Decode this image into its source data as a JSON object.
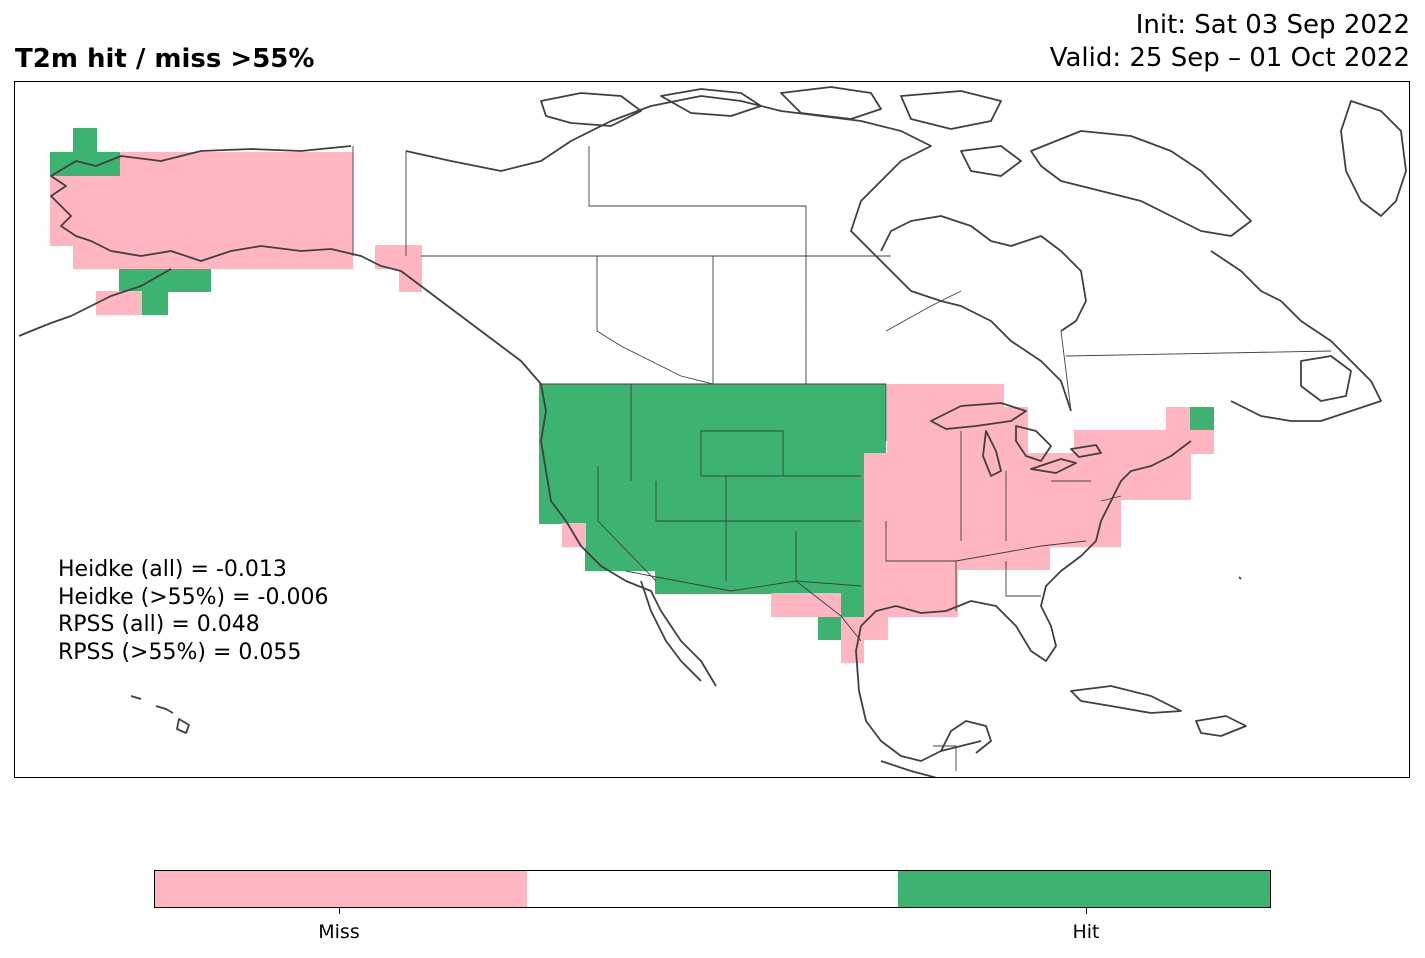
{
  "title": "T2m hit / miss  >55%",
  "init_text": "Init: Sat 03 Sep 2022",
  "valid_text": "Valid: 25 Sep – 01 Oct 2022",
  "stats": {
    "heidke_all": "Heidke (all) = -0.013",
    "heidke_55": "Heidke (>55%) = -0.006",
    "rpss_all": "RPSS (all) = 0.048",
    "rpss_55": "RPSS (>55%) = 0.055"
  },
  "colors": {
    "miss": "#ffb6c1",
    "neutral": "#ffffff",
    "hit": "#3cb371",
    "coast": "#404040",
    "border": "#404040"
  },
  "colorbar": {
    "labels": [
      "Miss",
      "Hit"
    ]
  }
}
